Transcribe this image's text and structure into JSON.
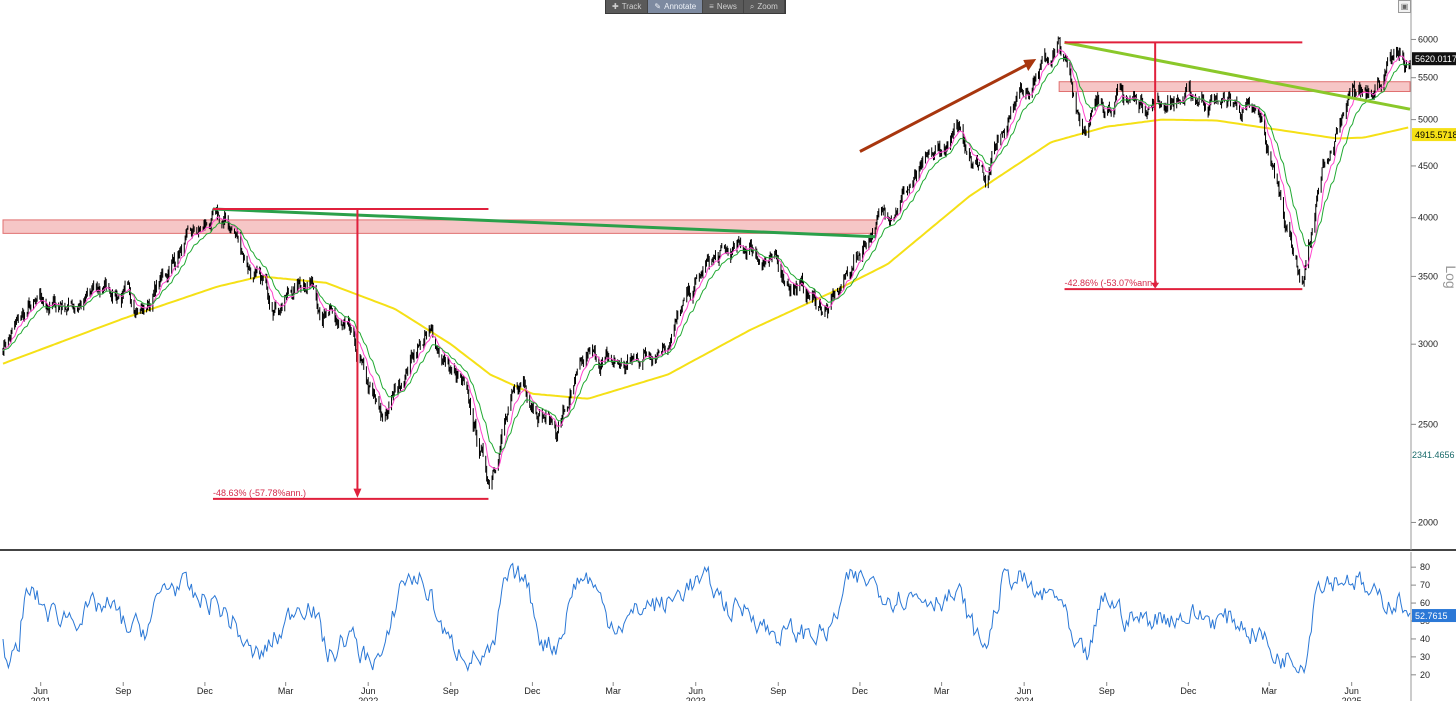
{
  "toolbar": {
    "items": [
      {
        "label": "Track",
        "icon": "crosshair-icon",
        "glyph": "✚",
        "active": false
      },
      {
        "label": "Annotate",
        "icon": "pencil-icon",
        "glyph": "✎",
        "active": true
      },
      {
        "label": "News",
        "icon": "news-icon",
        "glyph": "≡",
        "active": false
      },
      {
        "label": "Zoom",
        "icon": "magnifier-icon",
        "glyph": "⌕",
        "active": false
      }
    ]
  },
  "chart_data": [
    {
      "type": "line",
      "panel": "price",
      "yscale": "log",
      "ylim": [
        1900,
        6300
      ],
      "ytick_labels": [
        "6000",
        "5500",
        "5000",
        "4500",
        "4000",
        "3500",
        "3000",
        "2500",
        "2000"
      ],
      "axis_side_label": "Log",
      "x_range": [
        "2021-04-20",
        "2025-08-05"
      ],
      "x_ticks": [
        {
          "date": "2021-06-01",
          "label": "Jun"
        },
        {
          "date": "2021-09-01",
          "label": "Sep"
        },
        {
          "date": "2021-12-01",
          "label": "Dec"
        },
        {
          "date": "2022-03-01",
          "label": "Mar"
        },
        {
          "date": "2022-06-01",
          "label": "Jun"
        },
        {
          "date": "2022-09-01",
          "label": "Sep"
        },
        {
          "date": "2022-12-01",
          "label": "Dec"
        },
        {
          "date": "2023-03-01",
          "label": "Mar"
        },
        {
          "date": "2023-06-01",
          "label": "Jun"
        },
        {
          "date": "2023-09-01",
          "label": "Sep"
        },
        {
          "date": "2023-12-01",
          "label": "Dec"
        },
        {
          "date": "2024-03-01",
          "label": "Mar"
        },
        {
          "date": "2024-06-01",
          "label": "Jun"
        },
        {
          "date": "2024-09-01",
          "label": "Sep"
        },
        {
          "date": "2024-12-01",
          "label": "Dec"
        },
        {
          "date": "2025-03-01",
          "label": "Mar"
        },
        {
          "date": "2025-06-01",
          "label": "Jun"
        }
      ],
      "year_labels": [
        {
          "date": "2021-06-01",
          "label": "2021"
        },
        {
          "date": "2022-06-01",
          "label": "2022"
        },
        {
          "date": "2023-06-01",
          "label": "2023"
        },
        {
          "date": "2024-06-01",
          "label": "2024"
        },
        {
          "date": "2025-06-01",
          "label": "2025"
        }
      ],
      "price_path": [
        [
          "2021-04-20",
          3000
        ],
        [
          "2021-05-20",
          3250
        ],
        [
          "2021-07-15",
          3300
        ],
        [
          "2021-08-15",
          3420
        ],
        [
          "2021-09-25",
          3250
        ],
        [
          "2021-11-01",
          3700
        ],
        [
          "2021-12-10",
          3960
        ],
        [
          "2022-01-01",
          3900
        ],
        [
          "2022-01-28",
          3450
        ],
        [
          "2022-02-20",
          3300
        ],
        [
          "2022-03-28",
          3500
        ],
        [
          "2022-04-15",
          3200
        ],
        [
          "2022-05-10",
          3050
        ],
        [
          "2022-06-16",
          2500
        ],
        [
          "2022-07-25",
          3000
        ],
        [
          "2022-08-10",
          3050
        ],
        [
          "2022-09-15",
          2700
        ],
        [
          "2022-10-13",
          2200
        ],
        [
          "2022-10-30",
          2500
        ],
        [
          "2022-11-20",
          2750
        ],
        [
          "2022-12-28",
          2470
        ],
        [
          "2023-02-01",
          2900
        ],
        [
          "2023-03-15",
          2850
        ],
        [
          "2023-05-01",
          3050
        ],
        [
          "2023-06-15",
          3600
        ],
        [
          "2023-07-31",
          3750
        ],
        [
          "2023-09-01",
          3550
        ],
        [
          "2023-10-27",
          3230
        ],
        [
          "2023-12-10",
          3850
        ],
        [
          "2024-01-15",
          4200
        ],
        [
          "2024-03-20",
          4850
        ],
        [
          "2024-04-19",
          4450
        ],
        [
          "2024-05-20",
          5250
        ],
        [
          "2024-07-10",
          5900
        ],
        [
          "2024-08-05",
          4950
        ],
        [
          "2024-09-01",
          5250
        ],
        [
          "2024-10-15",
          5200
        ],
        [
          "2024-12-10",
          5250
        ],
        [
          "2025-01-20",
          5200
        ],
        [
          "2025-02-20",
          4950
        ],
        [
          "2025-04-07",
          3450
        ],
        [
          "2025-05-01",
          4500
        ],
        [
          "2025-06-01",
          5200
        ],
        [
          "2025-07-25",
          5750
        ],
        [
          "2025-08-05",
          5620
        ]
      ],
      "ma_200_path": [
        [
          "2021-04-20",
          2870
        ],
        [
          "2021-09-01",
          3180
        ],
        [
          "2021-12-15",
          3420
        ],
        [
          "2022-02-01",
          3500
        ],
        [
          "2022-04-15",
          3450
        ],
        [
          "2022-07-01",
          3250
        ],
        [
          "2022-09-01",
          3000
        ],
        [
          "2022-10-15",
          2800
        ],
        [
          "2022-12-01",
          2680
        ],
        [
          "2023-02-01",
          2650
        ],
        [
          "2023-05-01",
          2800
        ],
        [
          "2023-08-01",
          3100
        ],
        [
          "2023-11-01",
          3380
        ],
        [
          "2024-01-01",
          3600
        ],
        [
          "2024-04-01",
          4200
        ],
        [
          "2024-07-01",
          4750
        ],
        [
          "2024-09-01",
          4920
        ],
        [
          "2024-11-01",
          5000
        ],
        [
          "2025-01-01",
          4990
        ],
        [
          "2025-03-15",
          4880
        ],
        [
          "2025-05-15",
          4790
        ],
        [
          "2025-06-15",
          4800
        ],
        [
          "2025-08-05",
          4915.5718
        ]
      ],
      "price_last": {
        "label": "5620.0117",
        "value": 5620.0117
      },
      "ma_last": {
        "label": "4915.5718",
        "value": 4915.5718
      },
      "secondary_label": {
        "label": "2341.4656",
        "value": 2341.4656
      },
      "annotations": [
        {
          "text": "-48.63% (-57.78%ann.)",
          "color": "#d42a4a"
        },
        {
          "text": "-42.86% (-53.07%ann.)",
          "color": "#d42a4a"
        }
      ],
      "series": [
        {
          "type": "candlestick",
          "color": "#000000"
        },
        {
          "type": "line",
          "color": "#ff44cc"
        },
        {
          "type": "line",
          "color": "#22aa33"
        },
        {
          "type": "line",
          "color": "#f5e016"
        }
      ]
    },
    {
      "type": "line",
      "panel": "rsi",
      "ylim": [
        16,
        84
      ],
      "ytick_labels": [
        "80",
        "70",
        "60",
        "50",
        "40",
        "30",
        "20"
      ],
      "last": {
        "label": "52.7615",
        "value": 52.7615
      },
      "series": [
        {
          "type": "line",
          "color": "#2b78d6"
        }
      ]
    }
  ]
}
